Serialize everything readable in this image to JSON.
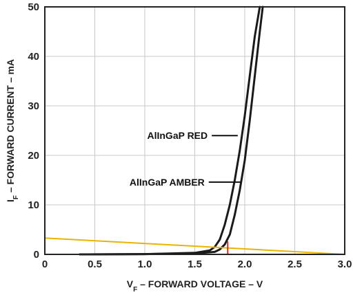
{
  "chart_data": {
    "type": "line",
    "title": "",
    "xlabel": {
      "main": "V",
      "sub": "F",
      "rest": " – FORWARD VOLTAGE – V"
    },
    "ylabel": {
      "main": "I",
      "sub": "F",
      "rest": " – FORWARD CURRENT – mA"
    },
    "xlim": [
      0,
      3.0
    ],
    "ylim": [
      0,
      50
    ],
    "x_ticks": [
      0,
      0.5,
      1.0,
      1.5,
      2.0,
      2.5,
      3.0
    ],
    "x_tick_labels": [
      "0",
      "0.5",
      "1.0",
      "1.5",
      "2.0",
      "2.5",
      "3.0"
    ],
    "y_ticks": [
      0,
      10,
      20,
      30,
      40,
      50
    ],
    "y_tick_labels": [
      "0",
      "10",
      "20",
      "30",
      "40",
      "50"
    ],
    "grid": true,
    "series": [
      {
        "name": "AlInGaP RED",
        "color": "#1a1a1a",
        "x": [
          0.35,
          1.0,
          1.5,
          1.65,
          1.7,
          1.75,
          1.8,
          1.85,
          1.9,
          1.95,
          2.0,
          2.05,
          2.1,
          2.15
        ],
        "y": [
          0,
          0.05,
          0.3,
          0.8,
          1.5,
          3.0,
          6.0,
          10.0,
          15.0,
          21.0,
          28.0,
          36.0,
          44.0,
          50.0
        ]
      },
      {
        "name": "AlInGaP AMBER",
        "color": "#1a1a1a",
        "x": [
          0.35,
          1.0,
          1.5,
          1.7,
          1.75,
          1.8,
          1.85,
          1.9,
          1.95,
          2.0,
          2.05,
          2.1,
          2.15,
          2.18
        ],
        "y": [
          0,
          0.05,
          0.2,
          0.5,
          1.0,
          2.0,
          4.0,
          8.0,
          13.0,
          19.0,
          27.0,
          36.0,
          45.0,
          50.0
        ]
      },
      {
        "name": "",
        "color": "#e8b400",
        "x": [
          0,
          3.0
        ],
        "y": [
          3.3,
          0
        ]
      },
      {
        "name": "",
        "color": "#e02020",
        "x": [
          1.83,
          1.83
        ],
        "y": [
          0,
          2.5
        ]
      }
    ],
    "annotations": [
      {
        "text": "AlInGaP RED",
        "pointer_from": [
          1.67,
          24
        ],
        "pointer_to": [
          1.93,
          24
        ]
      },
      {
        "text": "AlInGaP AMBER",
        "pointer_from": [
          1.64,
          14.6
        ],
        "pointer_to": [
          1.96,
          14.6
        ]
      }
    ],
    "legend": "none"
  }
}
